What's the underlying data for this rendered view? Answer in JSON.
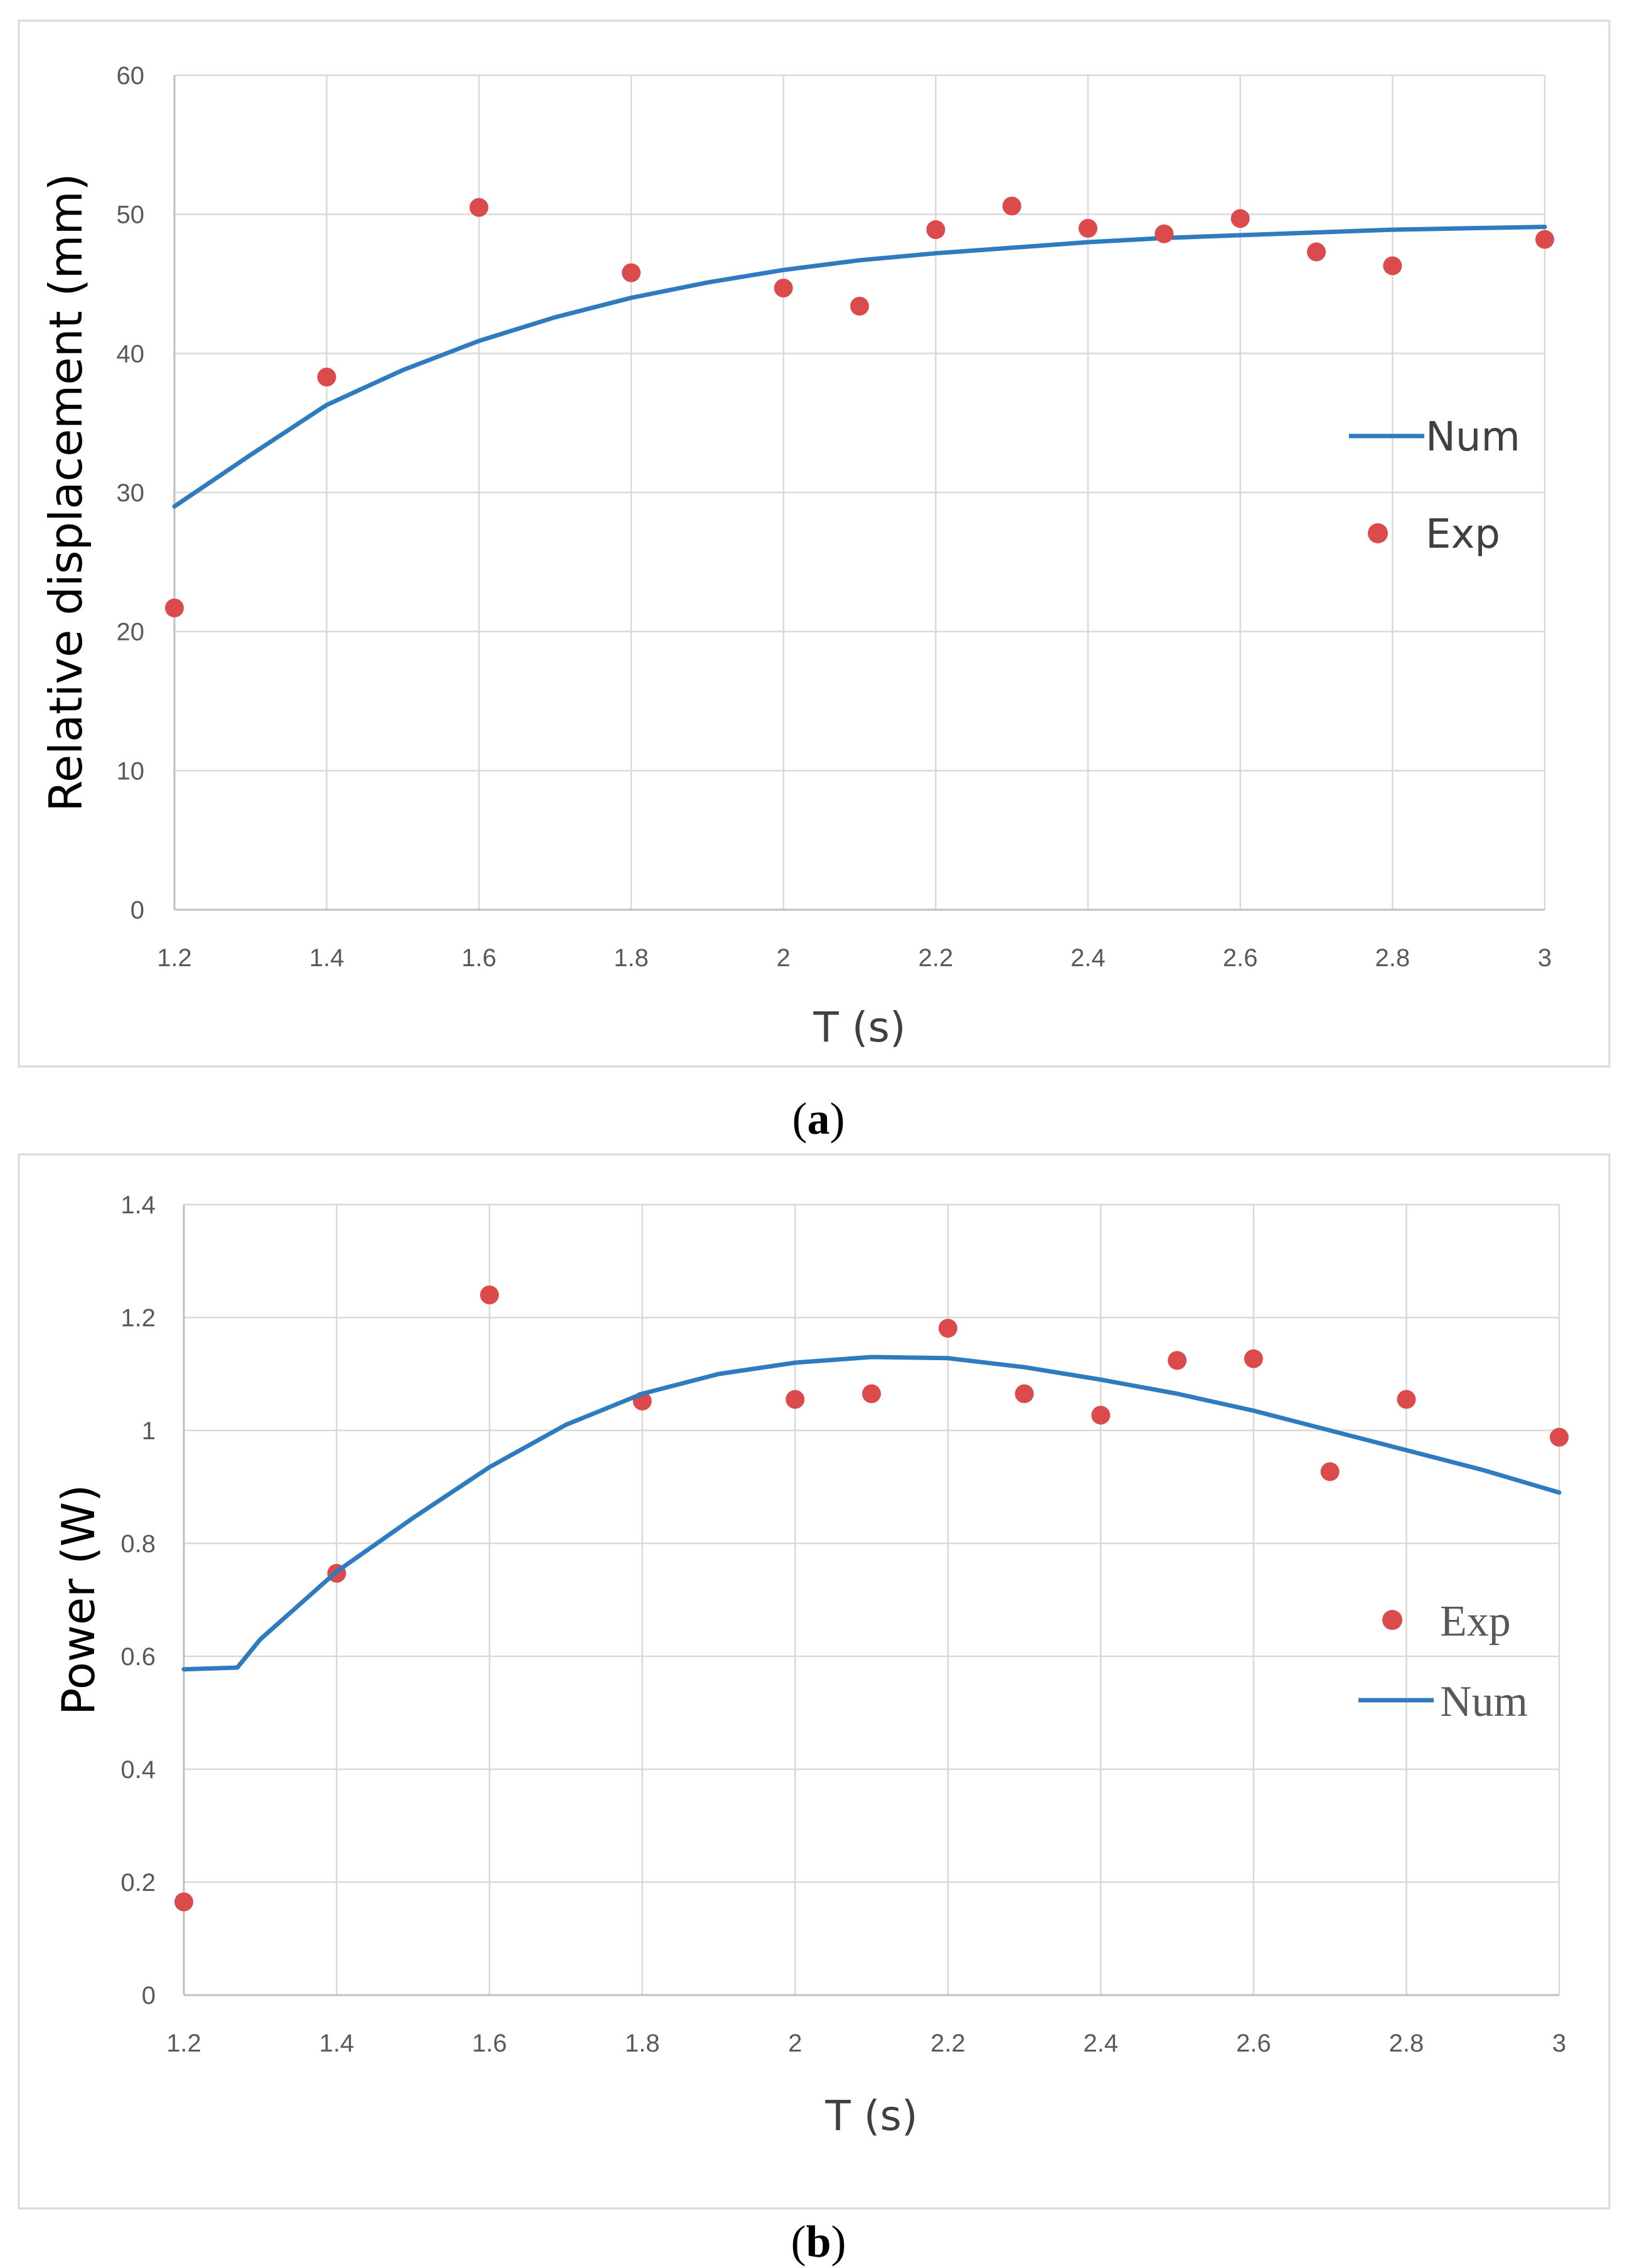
{
  "colors": {
    "num": "#2e7bbf",
    "exp": "#db4b4b"
  },
  "panels": [
    {
      "caption_open": "(",
      "caption_letter": "a",
      "caption_close": ")",
      "legend_order": [
        "Num",
        "Exp"
      ],
      "legend_style": "sans"
    },
    {
      "caption_open": "(",
      "caption_letter": "b",
      "caption_close": ")",
      "legend_order": [
        "Exp",
        "Num"
      ],
      "legend_style": "serif"
    }
  ],
  "chart_data": [
    {
      "type": "scatter",
      "xlabel": "T (s)",
      "ylabel": "Relative displacement (mm)",
      "xlim": [
        1.2,
        3
      ],
      "ylim": [
        0,
        60
      ],
      "xticks": [
        "1.2",
        "1.4",
        "1.6",
        "1.8",
        "2",
        "2.2",
        "2.4",
        "2.6",
        "2.8",
        "3"
      ],
      "yticks": [
        "0",
        "10",
        "20",
        "30",
        "40",
        "50",
        "60"
      ],
      "grid": true,
      "legend_position": "right",
      "series": [
        {
          "name": "Num",
          "kind": "line",
          "x": [
            1.2,
            1.3,
            1.4,
            1.5,
            1.6,
            1.7,
            1.8,
            1.9,
            2.0,
            2.1,
            2.2,
            2.3,
            2.4,
            2.5,
            2.6,
            2.7,
            2.8,
            2.9,
            3.0
          ],
          "y": [
            29.0,
            32.7,
            36.3,
            38.8,
            40.9,
            42.6,
            44.0,
            45.1,
            46.0,
            46.7,
            47.2,
            47.6,
            48.0,
            48.3,
            48.5,
            48.7,
            48.9,
            49.0,
            49.1
          ]
        },
        {
          "name": "Exp",
          "kind": "scatter",
          "x": [
            1.2,
            1.4,
            1.6,
            1.8,
            2.0,
            2.1,
            2.2,
            2.3,
            2.4,
            2.5,
            2.6,
            2.7,
            2.8,
            3.0
          ],
          "y": [
            21.7,
            38.3,
            50.5,
            45.8,
            44.7,
            43.4,
            48.9,
            50.6,
            49.0,
            48.6,
            49.7,
            47.3,
            46.3,
            48.2
          ]
        }
      ]
    },
    {
      "type": "scatter",
      "xlabel": "T (s)",
      "ylabel": "Power (W)",
      "xlim": [
        1.2,
        3
      ],
      "ylim": [
        0,
        1.4
      ],
      "xticks": [
        "1.2",
        "1.4",
        "1.6",
        "1.8",
        "2",
        "2.2",
        "2.4",
        "2.6",
        "2.8",
        "3"
      ],
      "yticks": [
        "0",
        "0.2",
        "0.4",
        "0.6",
        "0.8",
        "1",
        "1.2",
        "1.4"
      ],
      "grid": true,
      "legend_position": "right",
      "series": [
        {
          "name": "Exp",
          "kind": "scatter",
          "x": [
            1.2,
            1.4,
            1.6,
            1.8,
            2.0,
            2.1,
            2.2,
            2.3,
            2.4,
            2.5,
            2.6,
            2.7,
            2.8,
            3.0
          ],
          "y": [
            0.165,
            0.747,
            1.24,
            1.052,
            1.055,
            1.065,
            1.181,
            1.065,
            1.027,
            1.124,
            1.127,
            0.927,
            1.055,
            0.988
          ]
        },
        {
          "name": "Num",
          "kind": "line",
          "x": [
            1.2,
            1.27,
            1.3,
            1.4,
            1.5,
            1.6,
            1.7,
            1.8,
            1.9,
            2.0,
            2.1,
            2.2,
            2.3,
            2.4,
            2.5,
            2.6,
            2.7,
            2.8,
            2.9,
            3.0
          ],
          "y": [
            0.577,
            0.58,
            0.63,
            0.75,
            0.845,
            0.935,
            1.01,
            1.065,
            1.1,
            1.12,
            1.13,
            1.128,
            1.112,
            1.09,
            1.065,
            1.035,
            1.0,
            0.965,
            0.93,
            0.89
          ]
        }
      ]
    }
  ]
}
